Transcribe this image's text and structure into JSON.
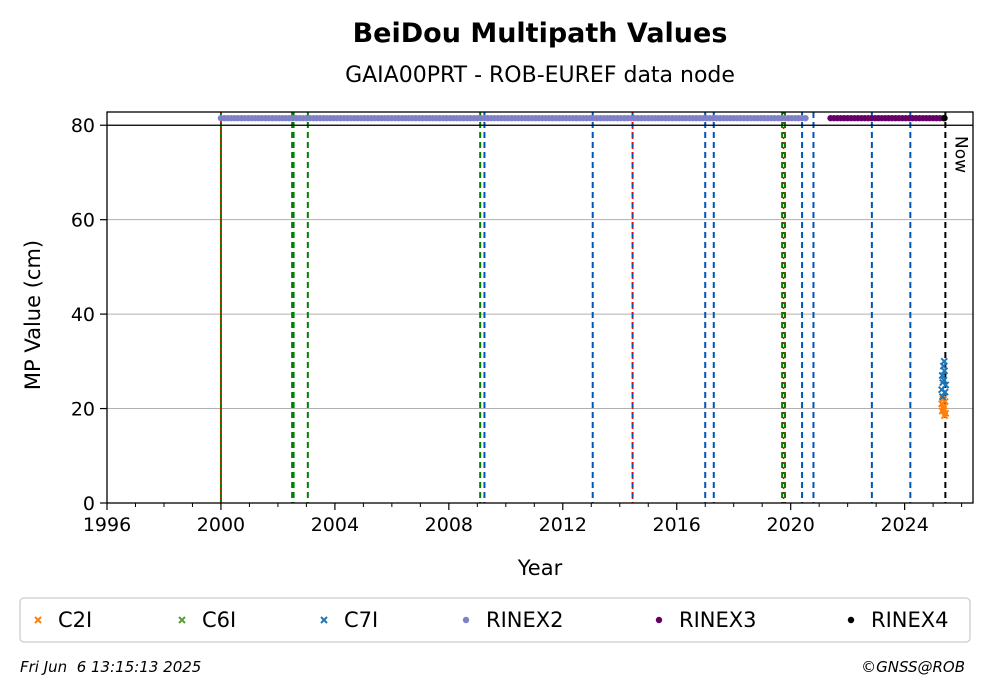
{
  "chart_data": {
    "type": "scatter",
    "title": "BeiDou Multipath Values",
    "subtitle": "GAIA00PRT - ROB-EUREF data node",
    "xlabel": "Year",
    "ylabel": "MP Value (cm)",
    "xlim": [
      1996,
      2026.4
    ],
    "ylim": [
      0,
      82.8
    ],
    "x_ticks": [
      1996,
      2000,
      2004,
      2008,
      2012,
      2016,
      2020,
      2024
    ],
    "y_ticks": [
      0,
      20,
      40,
      60,
      80
    ],
    "grid": "horizontal",
    "legend_position": "bottom",
    "reference_line": 80,
    "now_label": "Now",
    "now_x": 2025.43,
    "colors": {
      "C2I": "#ff7f0e",
      "C6I": "#5e9e3a",
      "C7I": "#1f77b4",
      "RINEX2": "#8080c8",
      "RINEX3": "#660066",
      "RINEX4": "#000000",
      "green_event": "#008000",
      "blue_event": "#0055bb",
      "red_event": "#ff0000"
    },
    "series": [
      {
        "name": "C2I",
        "marker": "x",
        "x": [
          2025.3,
          2025.32,
          2025.34,
          2025.36,
          2025.38,
          2025.4,
          2025.42,
          2025.44
        ],
        "y": [
          21,
          19.5,
          22,
          20,
          20.5,
          18.5,
          21.5,
          19
        ]
      },
      {
        "name": "C6I",
        "marker": "x",
        "x": [],
        "y": []
      },
      {
        "name": "C7I",
        "marker": "x",
        "x": [
          2025.3,
          2025.32,
          2025.34,
          2025.36,
          2025.38,
          2025.4,
          2025.42,
          2025.44,
          2025.33,
          2025.39
        ],
        "y": [
          24,
          27,
          25.5,
          29,
          26,
          28,
          23.5,
          25,
          22.5,
          30
        ]
      },
      {
        "name": "RINEX2",
        "marker": "dot",
        "x_range": [
          2000.0,
          2020.6
        ],
        "y": 81.5
      },
      {
        "name": "RINEX3",
        "marker": "dot",
        "x_range": [
          2021.4,
          2025.4
        ],
        "y": 81.5
      },
      {
        "name": "RINEX4",
        "marker": "dot",
        "x_range": [
          2025.4,
          2025.43
        ],
        "y": 81.5
      }
    ],
    "vertical_events": [
      {
        "x": 2000.0,
        "color": "green",
        "style": "solid"
      },
      {
        "x": 2002.5,
        "color": "green",
        "style": "dashed"
      },
      {
        "x": 2002.55,
        "color": "green",
        "style": "dashed"
      },
      {
        "x": 2003.05,
        "color": "green",
        "style": "dashed"
      },
      {
        "x": 2009.1,
        "color": "green",
        "style": "dashed"
      },
      {
        "x": 2009.25,
        "color": "blue",
        "style": "dashed"
      },
      {
        "x": 2013.05,
        "color": "blue",
        "style": "dashed"
      },
      {
        "x": 2014.45,
        "color": "blue",
        "style": "dashed"
      },
      {
        "x": 2017.0,
        "color": "blue",
        "style": "dashed"
      },
      {
        "x": 2017.3,
        "color": "blue",
        "style": "dashed"
      },
      {
        "x": 2019.7,
        "color": "green",
        "style": "dashed"
      },
      {
        "x": 2019.8,
        "color": "green",
        "style": "dashed"
      },
      {
        "x": 2020.4,
        "color": "blue",
        "style": "dashed"
      },
      {
        "x": 2020.8,
        "color": "blue",
        "style": "dashed"
      },
      {
        "x": 2022.85,
        "color": "blue",
        "style": "dashed"
      },
      {
        "x": 2024.2,
        "color": "blue",
        "style": "dashed"
      },
      {
        "x": 2000.0,
        "color": "red",
        "style": "dotted"
      },
      {
        "x": 2014.45,
        "color": "red",
        "style": "dotted"
      },
      {
        "x": 2019.75,
        "color": "red",
        "style": "dotted"
      }
    ],
    "legend": [
      "C2I",
      "C6I",
      "C7I",
      "RINEX2",
      "RINEX3",
      "RINEX4"
    ]
  },
  "footer": {
    "timestamp": "Fri Jun  6 13:15:13 2025",
    "copyright": "©GNSS@ROB"
  }
}
